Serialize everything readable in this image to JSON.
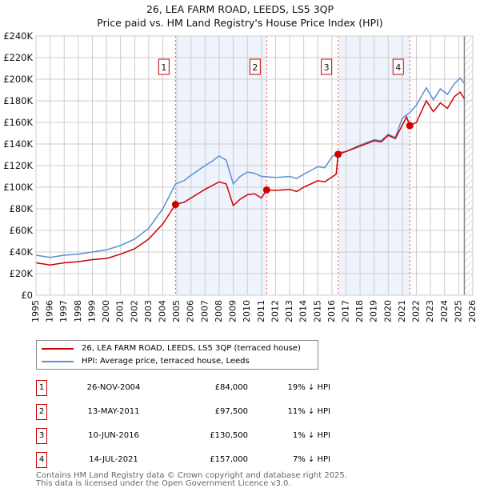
{
  "chart_data": {
    "type": "line",
    "title": "26, LEA FARM ROAD, LEEDS, LS5 3QP",
    "subtitle": "Price paid vs. HM Land Registry's House Price Index (HPI)",
    "xlim": [
      1995,
      2026
    ],
    "ylim": [
      0,
      240000
    ],
    "x_ticks": [
      "1995",
      "1996",
      "1997",
      "1998",
      "1999",
      "2000",
      "2001",
      "2002",
      "2003",
      "2004",
      "2005",
      "2006",
      "2007",
      "2008",
      "2009",
      "2010",
      "2011",
      "2012",
      "2013",
      "2014",
      "2015",
      "2016",
      "2017",
      "2018",
      "2019",
      "2020",
      "2021",
      "2022",
      "2023",
      "2024",
      "2025",
      "2026"
    ],
    "y_ticks": [
      "£0",
      "£20K",
      "£40K",
      "£60K",
      "£80K",
      "£100K",
      "£120K",
      "£140K",
      "£160K",
      "£180K",
      "£200K",
      "£220K",
      "£240K"
    ],
    "grid": true,
    "shaded_ranges": [
      [
        2004.9,
        2011.37
      ],
      [
        2016.44,
        2021.53
      ]
    ],
    "hatched_from": 2025.4,
    "series": [
      {
        "name": "26, LEA FARM ROAD, LEEDS, LS5 3QP (terraced house)",
        "color": "#cc0000",
        "x": [
          1995,
          1996,
          1997,
          1998,
          1999,
          2000,
          2001,
          2002,
          2003,
          2004,
          2004.9,
          2005.5,
          2006,
          2007,
          2008,
          2008.5,
          2009,
          2009.5,
          2010,
          2010.5,
          2011,
          2011.37,
          2012,
          2013,
          2013.5,
          2014,
          2015,
          2015.5,
          2016.3,
          2016.44,
          2017,
          2018,
          2019,
          2019.5,
          2020,
          2020.5,
          2021.3,
          2021.53,
          2022,
          2022.7,
          2023.2,
          2023.7,
          2024.2,
          2024.7,
          2025.1,
          2025.4
        ],
        "y": [
          30000,
          28000,
          30000,
          31000,
          33000,
          34000,
          38000,
          43000,
          52000,
          66000,
          84000,
          86000,
          90000,
          98000,
          105000,
          103000,
          83000,
          89000,
          93000,
          94000,
          90000,
          97500,
          97000,
          98000,
          96000,
          100000,
          106000,
          105000,
          112000,
          130500,
          133000,
          138000,
          143000,
          142000,
          148000,
          145000,
          165000,
          157000,
          160000,
          180000,
          170000,
          178000,
          173000,
          184000,
          188000,
          182000
        ]
      },
      {
        "name": "HPI: Average price, terraced house, Leeds",
        "color": "#5b8fd4",
        "x": [
          1995,
          1996,
          1997,
          1998,
          1999,
          2000,
          2001,
          2002,
          2003,
          2004,
          2004.9,
          2005.5,
          2006,
          2007,
          2007.5,
          2008,
          2008.5,
          2009,
          2009.5,
          2010,
          2010.5,
          2011,
          2012,
          2013,
          2013.5,
          2014,
          2015,
          2015.5,
          2016,
          2016.44,
          2017,
          2018,
          2019,
          2019.5,
          2020,
          2020.5,
          2021,
          2021.53,
          2022,
          2022.7,
          2023.2,
          2023.7,
          2024.2,
          2024.7,
          2025.1,
          2025.4
        ],
        "y": [
          37000,
          35000,
          37000,
          38000,
          40000,
          42000,
          46000,
          52000,
          62000,
          80000,
          103000,
          106000,
          111000,
          120000,
          124000,
          129000,
          125000,
          103000,
          110000,
          114000,
          113000,
          110000,
          109000,
          110000,
          108000,
          112000,
          119000,
          118000,
          128000,
          132000,
          133000,
          139000,
          144000,
          143000,
          149000,
          146000,
          164000,
          169000,
          176000,
          192000,
          181000,
          191000,
          186000,
          196000,
          201000,
          196000
        ]
      }
    ],
    "sales": [
      {
        "n": "1",
        "x": 2004.9,
        "y": 84000,
        "date": "26-NOV-2004",
        "price": "£84,000",
        "diff": "19% ↓ HPI"
      },
      {
        "n": "2",
        "x": 2011.37,
        "y": 97500,
        "date": "13-MAY-2011",
        "price": "£97,500",
        "diff": "11% ↓ HPI"
      },
      {
        "n": "3",
        "x": 2016.44,
        "y": 130500,
        "date": "10-JUN-2016",
        "price": "£130,500",
        "diff": "1% ↓ HPI"
      },
      {
        "n": "4",
        "x": 2021.53,
        "y": 157000,
        "date": "14-JUL-2021",
        "price": "£157,000",
        "diff": "7% ↓ HPI"
      }
    ],
    "legend_position": "below"
  },
  "footer": [
    "Contains HM Land Registry data © Crown copyright and database right 2025.",
    "This data is licensed under the Open Government Licence v3.0."
  ]
}
